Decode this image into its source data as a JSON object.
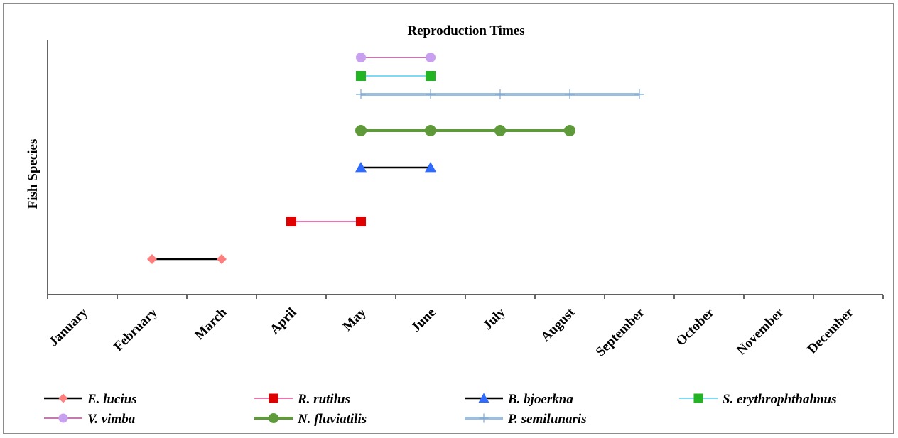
{
  "chart_data": {
    "type": "line",
    "title": "Reproduction Times",
    "xlabel": "",
    "ylabel": "Fish Species",
    "categories": [
      "January",
      "February",
      "March",
      "April",
      "May",
      "June",
      "July",
      "August",
      "September",
      "October",
      "November",
      "December"
    ],
    "grid": false,
    "legend_position": "bottom",
    "series": [
      {
        "name": "E. lucius",
        "months": [
          "February",
          "March"
        ],
        "color_line": "#000000",
        "color_marker": "#ff7f7f",
        "marker": "diamond",
        "line_width": 2.5
      },
      {
        "name": "R. rutilus",
        "months": [
          "April",
          "May"
        ],
        "color_line": "#e0207c",
        "color_marker": "#e00000",
        "marker": "square",
        "line_width": 1.2
      },
      {
        "name": "B. bjoerkna",
        "months": [
          "May",
          "June"
        ],
        "color_line": "#000000",
        "color_marker": "#2f6bff",
        "marker": "triangle",
        "line_width": 2.5
      },
      {
        "name": "S. erythrophthalmus",
        "months": [
          "May",
          "June"
        ],
        "color_line": "#2ec4f0",
        "color_marker": "#22b422",
        "marker": "square",
        "line_width": 1.2
      },
      {
        "name": "V. vimba",
        "months": [
          "May",
          "June"
        ],
        "color_line": "#a0287c",
        "color_marker": "#c9a0f0",
        "marker": "circle",
        "line_width": 1.2
      },
      {
        "name": "N. fluviatilis",
        "months": [
          "May",
          "June",
          "July",
          "August"
        ],
        "color_line": "#5e9a3a",
        "color_marker": "#5e9a3a",
        "marker": "circle",
        "line_width": 4
      },
      {
        "name": "P. semilunaris",
        "months": [
          "May",
          "June",
          "July",
          "August",
          "September"
        ],
        "color_line": "#9cbfe0",
        "color_marker": "#7fa8d0",
        "marker": "plus",
        "line_width": 4
      }
    ]
  }
}
